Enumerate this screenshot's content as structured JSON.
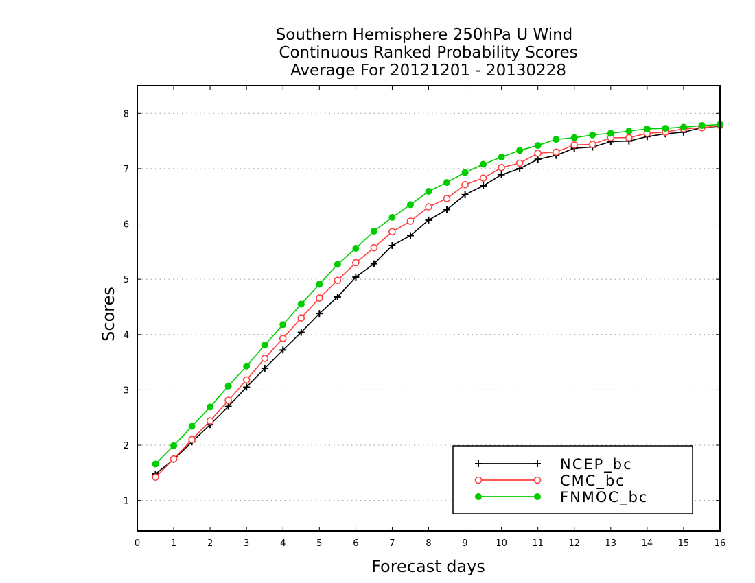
{
  "chart_data": {
    "type": "line",
    "title": [
      "Southern Hemisphere 250hPa U Wind",
      "Continuous Ranked Probability Scores",
      "Average For 20121201 - 20130228"
    ],
    "xlabel": "Forecast days",
    "ylabel": "Scores",
    "xlim": [
      0,
      16
    ],
    "ylim": [
      0.45,
      8.5
    ],
    "xticks": [
      "0",
      "1",
      "2",
      "3",
      "4",
      "5",
      "6",
      "7",
      "8",
      "9",
      "10",
      "11",
      "12",
      "13",
      "14",
      "15",
      "16"
    ],
    "yticks": [
      "1",
      "2",
      "3",
      "4",
      "5",
      "6",
      "7",
      "8"
    ],
    "grid": "horizontal-dotted",
    "legend_position": "bottom-right",
    "x": [
      0.5,
      1,
      1.5,
      2,
      2.5,
      3,
      3.5,
      4,
      4.5,
      5,
      5.5,
      6,
      6.5,
      7,
      7.5,
      8,
      8.5,
      9,
      9.5,
      10,
      10.5,
      11,
      11.5,
      12,
      12.5,
      13,
      13.5,
      14,
      14.5,
      15,
      15.5,
      16
    ],
    "series": [
      {
        "name": "NCEP_bc",
        "color": "#000000",
        "marker": "plus",
        "values": [
          1.48,
          1.74,
          2.06,
          2.37,
          2.7,
          3.05,
          3.39,
          3.72,
          4.04,
          4.38,
          4.68,
          5.04,
          5.28,
          5.61,
          5.79,
          6.07,
          6.26,
          6.53,
          6.69,
          6.89,
          7.0,
          7.17,
          7.24,
          7.37,
          7.39,
          7.49,
          7.5,
          7.58,
          7.63,
          7.66,
          7.74,
          7.77
        ]
      },
      {
        "name": "CMC_bc",
        "color": "#ff4040",
        "marker": "open-circle",
        "values": [
          1.42,
          1.75,
          2.1,
          2.44,
          2.81,
          3.18,
          3.57,
          3.93,
          4.3,
          4.66,
          4.98,
          5.3,
          5.57,
          5.86,
          6.05,
          6.31,
          6.46,
          6.71,
          6.83,
          7.02,
          7.1,
          7.28,
          7.3,
          7.43,
          7.44,
          7.56,
          7.56,
          7.64,
          7.66,
          7.72,
          7.74,
          7.78
        ]
      },
      {
        "name": "FNMOC_bc",
        "color": "#00cc00",
        "marker": "filled-circle",
        "values": [
          1.66,
          1.99,
          2.34,
          2.69,
          3.07,
          3.43,
          3.81,
          4.18,
          4.55,
          4.91,
          5.27,
          5.56,
          5.87,
          6.12,
          6.35,
          6.59,
          6.75,
          6.93,
          7.08,
          7.21,
          7.33,
          7.42,
          7.53,
          7.56,
          7.61,
          7.64,
          7.68,
          7.72,
          7.73,
          7.75,
          7.78,
          7.8
        ]
      }
    ]
  }
}
